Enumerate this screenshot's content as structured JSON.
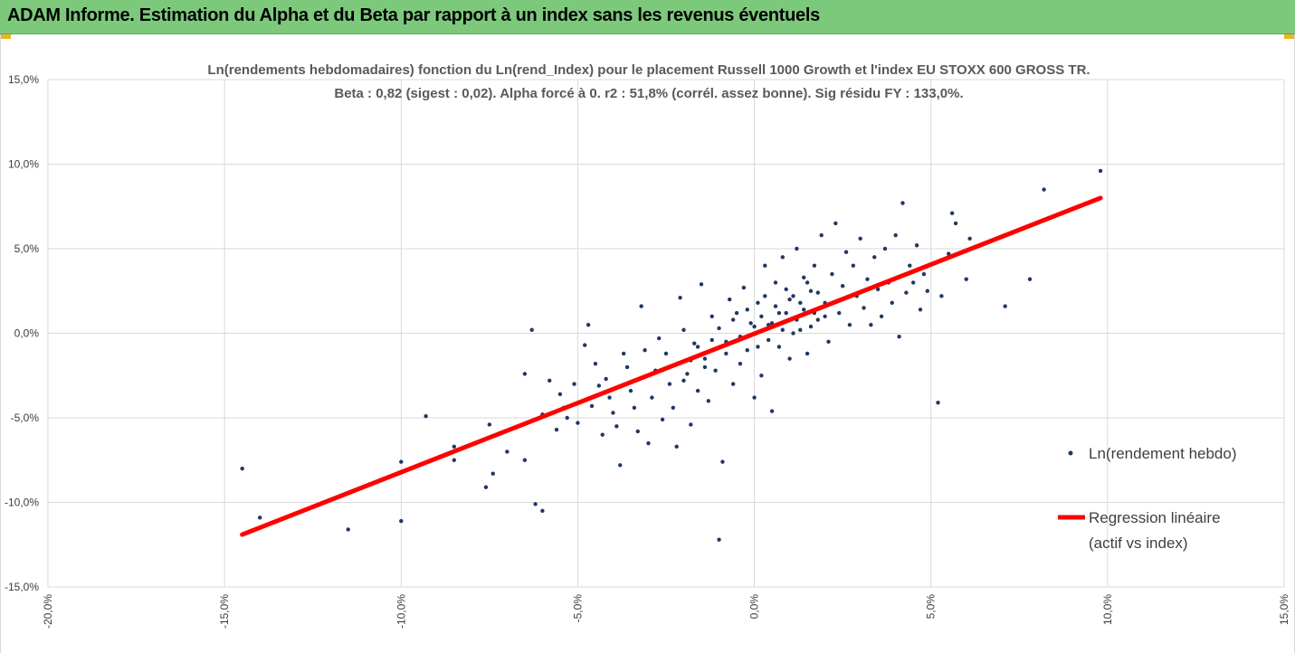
{
  "header": {
    "title": "ADAM Informe. Estimation du Alpha et du Beta par rapport à un index sans les revenus éventuels"
  },
  "colors": {
    "header_bg": "#7dc97c",
    "accent_corner": "#f2b21c",
    "points": "#1f3864",
    "regression": "#ff0000",
    "grid": "#d9d9d9"
  },
  "chart_data": {
    "type": "scatter",
    "title": "Ln(rendements hebdomadaires) fonction du Ln(rend_Index) pour le placement Russell 1000 Growth et l'index EU STOXX 600 GROSS TR.",
    "subtitle": "Beta : 0,82 (sigest : 0,02).  Alpha forcé à 0. r2 : 51,8% (corrél. assez bonne). Sig résidu FY : 133,0%.",
    "xlim": [
      -0.2,
      0.15
    ],
    "ylim": [
      -0.15,
      0.15
    ],
    "x_ticks": [
      "-20,0%",
      "-15,0%",
      "-10,0%",
      "-5,0%",
      "0,0%",
      "5,0%",
      "10,0%",
      "15,0%"
    ],
    "y_ticks": [
      "15,0%",
      "10,0%",
      "5,0%",
      "0,0%",
      "-5,0%",
      "-10,0%",
      "-15,0%"
    ],
    "grid": true,
    "legend_position": "right",
    "series": [
      {
        "name": "Ln(rendement hebdo)",
        "type": "scatter",
        "points": [
          [
            -0.145,
            -0.08
          ],
          [
            -0.14,
            -0.109
          ],
          [
            -0.115,
            -0.116
          ],
          [
            -0.1,
            -0.111
          ],
          [
            -0.1,
            -0.076
          ],
          [
            -0.093,
            -0.049
          ],
          [
            -0.085,
            -0.067
          ],
          [
            -0.085,
            -0.075
          ],
          [
            -0.075,
            -0.054
          ],
          [
            -0.076,
            -0.091
          ],
          [
            -0.074,
            -0.083
          ],
          [
            -0.07,
            -0.07
          ],
          [
            -0.065,
            -0.024
          ],
          [
            -0.065,
            -0.075
          ],
          [
            -0.063,
            0.002
          ],
          [
            -0.062,
            -0.101
          ],
          [
            -0.06,
            -0.105
          ],
          [
            -0.06,
            -0.048
          ],
          [
            -0.058,
            -0.028
          ],
          [
            -0.056,
            -0.057
          ],
          [
            -0.055,
            -0.036
          ],
          [
            -0.054,
            -0.044
          ],
          [
            -0.053,
            -0.05
          ],
          [
            -0.051,
            -0.03
          ],
          [
            -0.05,
            -0.053
          ],
          [
            -0.048,
            -0.007
          ],
          [
            -0.047,
            0.005
          ],
          [
            -0.046,
            -0.043
          ],
          [
            -0.045,
            -0.018
          ],
          [
            -0.044,
            -0.031
          ],
          [
            -0.043,
            -0.06
          ],
          [
            -0.042,
            -0.027
          ],
          [
            -0.041,
            -0.038
          ],
          [
            -0.04,
            -0.047
          ],
          [
            -0.039,
            -0.055
          ],
          [
            -0.038,
            -0.078
          ],
          [
            -0.037,
            -0.012
          ],
          [
            -0.036,
            -0.02
          ],
          [
            -0.035,
            -0.034
          ],
          [
            -0.034,
            -0.044
          ],
          [
            -0.033,
            -0.058
          ],
          [
            -0.032,
            0.016
          ],
          [
            -0.031,
            -0.01
          ],
          [
            -0.03,
            -0.065
          ],
          [
            -0.029,
            -0.038
          ],
          [
            -0.028,
            -0.022
          ],
          [
            -0.027,
            -0.003
          ],
          [
            -0.026,
            -0.051
          ],
          [
            -0.025,
            -0.012
          ],
          [
            -0.024,
            -0.03
          ],
          [
            -0.023,
            -0.044
          ],
          [
            -0.022,
            -0.067
          ],
          [
            -0.021,
            0.021
          ],
          [
            -0.02,
            0.002
          ],
          [
            -0.019,
            -0.024
          ],
          [
            -0.018,
            -0.054
          ],
          [
            -0.017,
            -0.006
          ],
          [
            -0.016,
            -0.034
          ],
          [
            -0.015,
            0.029
          ],
          [
            -0.014,
            -0.015
          ],
          [
            -0.013,
            -0.04
          ],
          [
            -0.012,
            0.01
          ],
          [
            -0.011,
            -0.022
          ],
          [
            -0.01,
            -0.122
          ],
          [
            -0.009,
            -0.076
          ],
          [
            -0.008,
            -0.005
          ],
          [
            -0.007,
            0.02
          ],
          [
            -0.006,
            -0.03
          ],
          [
            -0.005,
            0.012
          ],
          [
            -0.004,
            -0.018
          ],
          [
            -0.003,
            0.027
          ],
          [
            -0.002,
            -0.01
          ],
          [
            -0.001,
            0.006
          ],
          [
            0.0,
            -0.038
          ],
          [
            0.001,
            0.018
          ],
          [
            0.002,
            -0.025
          ],
          [
            0.003,
            0.04
          ],
          [
            0.004,
            0.005
          ],
          [
            0.005,
            -0.046
          ],
          [
            0.006,
            0.03
          ],
          [
            0.007,
            -0.008
          ],
          [
            0.008,
            0.045
          ],
          [
            0.009,
            0.012
          ],
          [
            0.01,
            -0.015
          ],
          [
            0.011,
            0.022
          ],
          [
            0.012,
            0.05
          ],
          [
            0.013,
            0.002
          ],
          [
            0.014,
            0.033
          ],
          [
            0.015,
            -0.012
          ],
          [
            0.016,
            0.025
          ],
          [
            0.017,
            0.04
          ],
          [
            0.018,
            0.008
          ],
          [
            0.019,
            0.058
          ],
          [
            0.02,
            0.018
          ],
          [
            0.021,
            -0.005
          ],
          [
            0.022,
            0.035
          ],
          [
            0.023,
            0.065
          ],
          [
            0.024,
            0.012
          ],
          [
            0.025,
            0.028
          ],
          [
            0.026,
            0.048
          ],
          [
            0.027,
            0.005
          ],
          [
            0.028,
            0.04
          ],
          [
            0.029,
            0.022
          ],
          [
            0.03,
            0.056
          ],
          [
            0.031,
            0.015
          ],
          [
            0.032,
            0.032
          ],
          [
            0.033,
            0.005
          ],
          [
            0.034,
            0.045
          ],
          [
            0.035,
            0.026
          ],
          [
            0.036,
            0.01
          ],
          [
            0.037,
            0.05
          ],
          [
            0.038,
            0.03
          ],
          [
            0.039,
            0.018
          ],
          [
            0.04,
            0.058
          ],
          [
            0.041,
            -0.002
          ],
          [
            0.042,
            0.077
          ],
          [
            0.043,
            0.024
          ],
          [
            0.044,
            0.04
          ],
          [
            0.045,
            0.03
          ],
          [
            0.046,
            0.052
          ],
          [
            0.047,
            0.014
          ],
          [
            0.048,
            0.035
          ],
          [
            0.049,
            0.025
          ],
          [
            0.052,
            -0.041
          ],
          [
            0.053,
            0.022
          ],
          [
            0.055,
            0.047
          ],
          [
            0.056,
            0.071
          ],
          [
            0.057,
            0.065
          ],
          [
            0.06,
            0.032
          ],
          [
            0.061,
            0.056
          ],
          [
            0.071,
            0.016
          ],
          [
            0.078,
            0.032
          ],
          [
            0.082,
            0.085
          ],
          [
            0.098,
            0.096
          ],
          [
            -0.012,
            -0.004
          ],
          [
            -0.01,
            0.003
          ],
          [
            -0.008,
            -0.012
          ],
          [
            -0.006,
            0.008
          ],
          [
            -0.004,
            -0.002
          ],
          [
            -0.002,
            0.014
          ],
          [
            0.0,
            0.004
          ],
          [
            0.002,
            0.01
          ],
          [
            0.004,
            -0.004
          ],
          [
            0.006,
            0.016
          ],
          [
            0.008,
            0.002
          ],
          [
            0.01,
            0.02
          ],
          [
            0.012,
            0.008
          ],
          [
            0.014,
            0.014
          ],
          [
            0.016,
            0.004
          ],
          [
            0.018,
            0.024
          ],
          [
            0.02,
            0.01
          ],
          [
            -0.014,
            -0.02
          ],
          [
            -0.016,
            -0.008
          ],
          [
            -0.018,
            -0.016
          ],
          [
            -0.02,
            -0.028
          ],
          [
            0.001,
            -0.008
          ],
          [
            0.003,
            0.022
          ],
          [
            0.005,
            0.006
          ],
          [
            0.007,
            0.012
          ],
          [
            0.009,
            0.026
          ],
          [
            0.011,
            0.0
          ],
          [
            0.013,
            0.018
          ],
          [
            0.015,
            0.03
          ],
          [
            0.017,
            0.012
          ]
        ]
      },
      {
        "name": "Regression linéaire (actif vs index)",
        "type": "line",
        "x": [
          -0.145,
          0.098
        ],
        "y": [
          -0.119,
          0.08
        ]
      }
    ]
  },
  "legend": {
    "scatter_label": "Ln(rendement hebdo)",
    "line_label_1": "Regression linéaire",
    "line_label_2": "(actif vs index)"
  }
}
